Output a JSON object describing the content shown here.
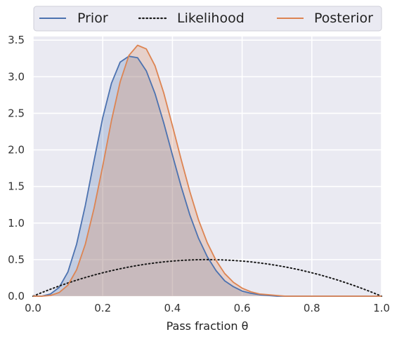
{
  "chart_data": {
    "type": "line",
    "title": "",
    "xlabel": "Pass fraction θ",
    "ylabel": "",
    "xlim": [
      0,
      1
    ],
    "ylim": [
      0,
      3.55
    ],
    "x_ticks": [
      "0.0",
      "0.2",
      "0.4",
      "0.6",
      "0.8",
      "1.0"
    ],
    "y_ticks": [
      "0.0",
      "0.5",
      "1.0",
      "1.5",
      "2.0",
      "2.5",
      "3.0",
      "3.5"
    ],
    "grid": true,
    "legend": {
      "placement": "top",
      "columns": 3
    },
    "series": [
      {
        "name": "Prior",
        "style": "solid",
        "color": "#4c72b0",
        "filled": true,
        "x": [
          0.0,
          0.025,
          0.05,
          0.075,
          0.1,
          0.125,
          0.15,
          0.175,
          0.2,
          0.225,
          0.25,
          0.275,
          0.3,
          0.325,
          0.35,
          0.375,
          0.4,
          0.425,
          0.45,
          0.475,
          0.5,
          0.525,
          0.55,
          0.575,
          0.6,
          0.625,
          0.65,
          0.675,
          0.7,
          0.725,
          0.75,
          0.775,
          0.8,
          0.825,
          0.85,
          0.875,
          0.9,
          0.925,
          0.95,
          0.975,
          1.0
        ],
        "y": [
          0.0,
          0.0,
          0.03,
          0.12,
          0.33,
          0.71,
          1.24,
          1.85,
          2.44,
          2.91,
          3.2,
          3.28,
          3.26,
          3.08,
          2.77,
          2.37,
          1.93,
          1.5,
          1.11,
          0.79,
          0.54,
          0.35,
          0.21,
          0.13,
          0.07,
          0.04,
          0.02,
          0.01,
          0.0,
          0.0,
          0.0,
          0.0,
          0.0,
          0.0,
          0.0,
          0.0,
          0.0,
          0.0,
          0.0,
          0.0,
          0.0
        ]
      },
      {
        "name": "Likelihood",
        "style": "dotted",
        "color": "#1a1a1a",
        "filled": false,
        "x": [
          0.0,
          0.025,
          0.05,
          0.075,
          0.1,
          0.125,
          0.15,
          0.175,
          0.2,
          0.225,
          0.25,
          0.275,
          0.3,
          0.325,
          0.35,
          0.375,
          0.4,
          0.425,
          0.45,
          0.475,
          0.5,
          0.525,
          0.55,
          0.575,
          0.6,
          0.625,
          0.65,
          0.675,
          0.7,
          0.725,
          0.75,
          0.775,
          0.8,
          0.825,
          0.85,
          0.875,
          0.9,
          0.925,
          0.95,
          0.975,
          1.0
        ],
        "y": [
          0.0,
          0.049,
          0.095,
          0.139,
          0.18,
          0.219,
          0.255,
          0.289,
          0.32,
          0.349,
          0.375,
          0.399,
          0.42,
          0.439,
          0.455,
          0.469,
          0.48,
          0.489,
          0.495,
          0.499,
          0.5,
          0.499,
          0.495,
          0.489,
          0.48,
          0.469,
          0.455,
          0.439,
          0.42,
          0.399,
          0.375,
          0.349,
          0.32,
          0.289,
          0.255,
          0.219,
          0.18,
          0.139,
          0.095,
          0.049,
          0.0
        ]
      },
      {
        "name": "Posterior",
        "style": "solid",
        "color": "#dd8452",
        "filled": true,
        "x": [
          0.0,
          0.025,
          0.05,
          0.075,
          0.1,
          0.125,
          0.15,
          0.175,
          0.2,
          0.225,
          0.25,
          0.275,
          0.3,
          0.325,
          0.35,
          0.375,
          0.4,
          0.425,
          0.45,
          0.475,
          0.5,
          0.525,
          0.55,
          0.575,
          0.6,
          0.625,
          0.65,
          0.675,
          0.7,
          0.725,
          0.75,
          0.775,
          0.8,
          0.825,
          0.85,
          0.875,
          0.9,
          0.925,
          0.95,
          0.975,
          1.0
        ],
        "y": [
          0.0,
          0.0,
          0.01,
          0.05,
          0.15,
          0.36,
          0.71,
          1.2,
          1.78,
          2.4,
          2.93,
          3.29,
          3.43,
          3.38,
          3.15,
          2.78,
          2.33,
          1.87,
          1.43,
          1.04,
          0.73,
          0.49,
          0.31,
          0.19,
          0.11,
          0.06,
          0.03,
          0.02,
          0.01,
          0.0,
          0.0,
          0.0,
          0.0,
          0.0,
          0.0,
          0.0,
          0.0,
          0.0,
          0.0,
          0.0,
          0.0
        ]
      }
    ]
  }
}
